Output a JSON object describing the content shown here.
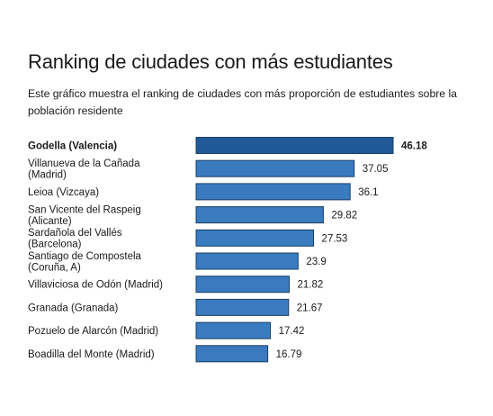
{
  "title": "Ranking de ciudades con más estudiantes",
  "subtitle": "Este gráfico muestra el ranking de ciudades con más proporción de estudiantes sobre la población residente",
  "colors": {
    "bar": "#3a7bbf",
    "bar_highlight": "#1f5a96",
    "bar_stroke": "#1b3f66"
  },
  "chart_data": {
    "type": "bar",
    "orientation": "horizontal",
    "title": "Ranking de ciudades con más estudiantes",
    "subtitle": "Este gráfico muestra el ranking de ciudades con más proporción de estudiantes sobre la población residente",
    "categories": [
      [
        "Godella (Valencia)"
      ],
      [
        "Villanueva de la Cañada",
        "(Madrid)"
      ],
      [
        "Leioa (Vizcaya)"
      ],
      [
        "San Vicente del Raspeig",
        "(Alicante)"
      ],
      [
        "Sardañola del Vallés",
        "(Barcelona)"
      ],
      [
        "Santiago de Compostela",
        "(Coruña, A)"
      ],
      [
        "Villaviciosa de Odón (Madrid)"
      ],
      [
        "Granada (Granada)"
      ],
      [
        "Pozuelo de Alarcón (Madrid)"
      ],
      [
        "Boadilla del Monte (Madrid)"
      ]
    ],
    "values": [
      46.18,
      37.05,
      36.1,
      29.82,
      27.53,
      23.9,
      21.82,
      21.67,
      17.42,
      16.79
    ],
    "value_labels": [
      "46.18",
      "37.05",
      "36.1",
      "29.82",
      "27.53",
      "23.9",
      "21.82",
      "21.67",
      "17.42",
      "16.79"
    ],
    "highlight_index": 0,
    "xlim": [
      0,
      46.18
    ],
    "grid": false,
    "xlabel": "",
    "ylabel": ""
  }
}
